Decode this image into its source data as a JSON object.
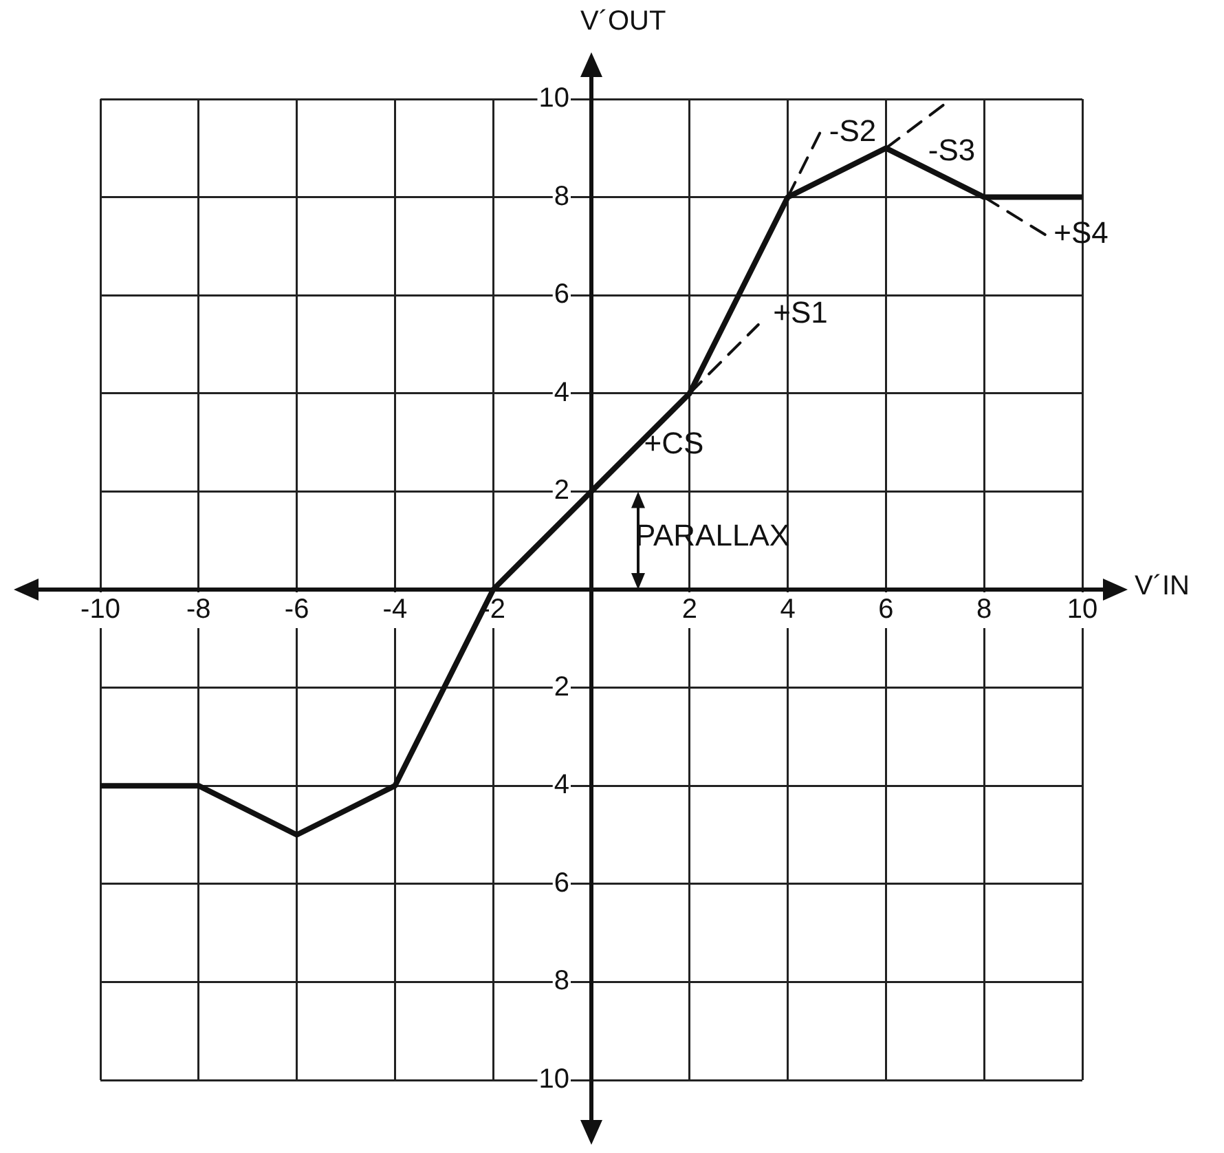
{
  "chart_data": {
    "type": "line",
    "xlabel": "V´IN",
    "ylabel": "V´OUT",
    "xlim": [
      -10,
      10
    ],
    "ylim": [
      -10,
      10
    ],
    "xticks": [
      -10,
      -8,
      -6,
      -4,
      -2,
      2,
      4,
      6,
      8,
      10
    ],
    "yticks": [
      {
        "value": -10,
        "label": "10"
      },
      {
        "value": -8,
        "label": "8"
      },
      {
        "value": -6,
        "label": "6"
      },
      {
        "value": -4,
        "label": "4"
      },
      {
        "value": -2,
        "label": "2"
      },
      2,
      4,
      6,
      8,
      10
    ],
    "grid": true,
    "legend": false,
    "marker": "none",
    "series": [
      {
        "color": "#111111",
        "line_style": "solid",
        "x": [
          -10,
          -8,
          -6,
          -4,
          -2,
          0,
          2,
          4,
          6,
          8,
          10
        ],
        "values": [
          -4,
          -4,
          -5,
          -4,
          0,
          2,
          4,
          8,
          9,
          8,
          8
        ]
      },
      {
        "color": "#111111",
        "line_style": "dashed",
        "x": [
          2,
          3.4
        ],
        "values": [
          4,
          5.4
        ]
      },
      {
        "color": "#111111",
        "line_style": "dashed",
        "x": [
          4,
          4.7
        ],
        "values": [
          8,
          9.4
        ]
      },
      {
        "color": "#111111",
        "line_style": "dashed",
        "x": [
          6,
          7.2
        ],
        "values": [
          9,
          9.9
        ]
      },
      {
        "color": "#111111",
        "line_style": "dashed",
        "x": [
          8,
          9.3
        ],
        "values": [
          8,
          7.2
        ]
      }
    ],
    "annotations": [
      "+CS",
      "PARALLAX",
      "+S1",
      "-S2",
      "-S3",
      "+S4"
    ]
  }
}
